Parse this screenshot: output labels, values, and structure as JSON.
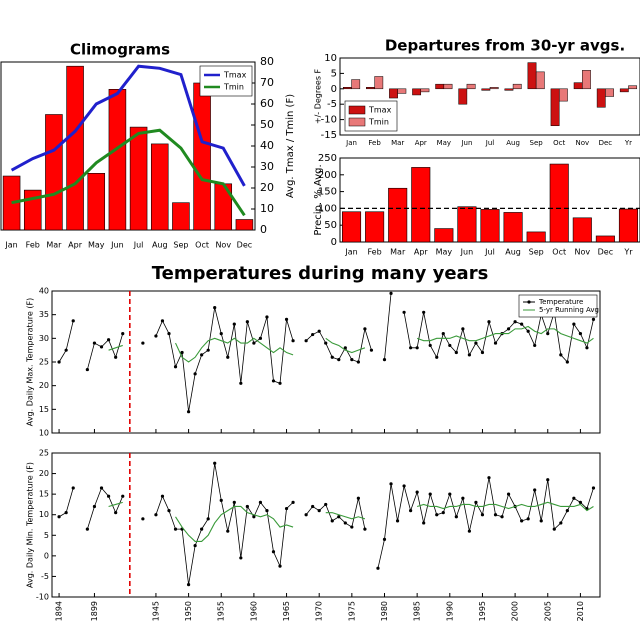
{
  "chart_data": [
    {
      "type": "bar",
      "title": "Climograms",
      "categories": [
        "Jan",
        "Feb",
        "Mar",
        "Apr",
        "May",
        "Jun",
        "Jul",
        "Aug",
        "Sep",
        "Oct",
        "Nov",
        "Dec"
      ],
      "values": [
        25.7,
        19,
        55,
        78,
        27,
        67,
        49,
        41,
        13,
        70,
        22,
        5
      ],
      "color": "#ff0000",
      "ylim": [
        0,
        80
      ],
      "y2lim": [
        0,
        80
      ],
      "y2ticks": [
        0,
        10,
        20,
        30,
        40,
        50,
        60,
        70,
        80
      ],
      "y2label": "Avg. Tmax / Tmin (F)",
      "legend": "upper right",
      "series": [
        {
          "name": "Tmax",
          "color": "#2020cc",
          "axis": "y2",
          "values": [
            28.5,
            34,
            38,
            47,
            60,
            65,
            78,
            77,
            74,
            42,
            39,
            21
          ]
        },
        {
          "name": "Tmin",
          "color": "#208a20",
          "axis": "y2",
          "values": [
            13,
            15,
            17,
            22,
            32,
            39,
            46,
            47.5,
            39,
            24,
            22,
            7
          ]
        }
      ]
    },
    {
      "type": "bar",
      "title": "Departures from 30-yr avgs.",
      "categories": [
        "Jan",
        "Feb",
        "Mar",
        "Apr",
        "May",
        "Jun",
        "Jul",
        "Aug",
        "Sep",
        "Oct",
        "Nov",
        "Dec",
        "Yr"
      ],
      "ylim": [
        -15,
        10
      ],
      "yticks": [
        -15,
        -10,
        -5,
        0,
        5,
        10
      ],
      "ylabel": "+/- Degrees F",
      "legend": "lower left",
      "series": [
        {
          "name": "Tmax",
          "color": "#cc1111",
          "values": [
            0.5,
            0.5,
            -3,
            -2,
            1.5,
            -5,
            -0.5,
            -0.5,
            8.5,
            -12,
            2,
            -6,
            -1
          ]
        },
        {
          "name": "Tmin",
          "color": "#e87878",
          "values": [
            3,
            4,
            -1.5,
            -1,
            1.5,
            1.5,
            0.5,
            1.5,
            5.5,
            -4,
            6,
            -2.5,
            1
          ]
        }
      ]
    },
    {
      "type": "bar",
      "categories": [
        "Jan",
        "Feb",
        "Mar",
        "Apr",
        "May",
        "Jun",
        "Jul",
        "Aug",
        "Sep",
        "Oct",
        "Nov",
        "Dec",
        "Yr"
      ],
      "values": [
        90,
        90,
        160,
        222,
        40,
        105,
        97,
        88,
        30,
        232,
        72,
        18,
        98
      ],
      "color": "#ff0000",
      "ylim": [
        0,
        250
      ],
      "yticks": [
        0,
        50,
        100,
        150,
        200,
        250
      ],
      "ylabel": "Precip. % Avg.",
      "hline": 100
    },
    {
      "type": "line",
      "title": "Temperatures during many years",
      "xlim": [
        1893,
        2013
      ],
      "xbreak": [
        1904,
        1941
      ],
      "ylim": [
        10,
        40
      ],
      "yticks": [
        10,
        15,
        20,
        25,
        30,
        35,
        40
      ],
      "ylabel": "Avg. Daily Max. Temperature (F)",
      "legend": "upper right",
      "series": [
        {
          "name": "Temperature",
          "color": "#000000",
          "marker": true,
          "x": [
            1894,
            1895,
            1896,
            1897,
            1898,
            1899,
            1900,
            1901,
            1902,
            1903,
            1904,
            1943,
            1944,
            1945,
            1946,
            1947,
            1948,
            1949,
            1950,
            1951,
            1952,
            1953,
            1954,
            1955,
            1956,
            1957,
            1958,
            1959,
            1960,
            1961,
            1962,
            1963,
            1964,
            1965,
            1966,
            1967,
            1968,
            1969,
            1970,
            1971,
            1972,
            1973,
            1974,
            1975,
            1976,
            1977,
            1978,
            1979,
            1980,
            1981,
            1982,
            1983,
            1984,
            1985,
            1986,
            1987,
            1988,
            1989,
            1990,
            1991,
            1992,
            1993,
            1994,
            1995,
            1996,
            1997,
            1998,
            1999,
            2000,
            2001,
            2002,
            2003,
            2004,
            2005,
            2006,
            2007,
            2008,
            2009,
            2010,
            2011,
            2012
          ],
          "values": [
            25,
            27.5,
            33.7,
            null,
            23.4,
            29,
            28.2,
            29.7,
            26,
            31,
            null,
            29,
            null,
            30.5,
            33.7,
            31,
            24,
            27,
            14.5,
            22.5,
            26.5,
            27.5,
            36.5,
            31,
            26,
            33,
            20.5,
            33.5,
            29,
            30,
            34.5,
            21,
            20.5,
            34,
            29.5,
            null,
            29.5,
            30.8,
            31.5,
            29,
            26,
            25.5,
            28,
            25.5,
            25,
            32,
            27.5,
            null,
            25.5,
            39.5,
            null,
            35.5,
            28,
            28,
            35.5,
            28.5,
            26,
            31,
            28.5,
            27,
            32,
            26.5,
            29,
            27,
            33.5,
            29,
            31,
            32,
            33.5,
            33,
            31.5,
            28.5,
            35,
            31,
            35.5,
            26.5,
            25,
            33,
            31,
            28,
            34
          ]
        },
        {
          "name": "5-yr Running Avg",
          "color": "#3a9a3a",
          "x": [
            1901,
            1902,
            1903,
            1904,
            1948,
            1949,
            1950,
            1951,
            1952,
            1953,
            1954,
            1955,
            1956,
            1957,
            1958,
            1959,
            1960,
            1961,
            1962,
            1963,
            1964,
            1965,
            1966,
            1967,
            1971,
            1972,
            1973,
            1974,
            1975,
            1976,
            1977,
            1978,
            1985,
            1986,
            1987,
            1988,
            1989,
            1990,
            1991,
            1992,
            1993,
            1994,
            1995,
            1996,
            1997,
            1998,
            1999,
            2000,
            2001,
            2002,
            2003,
            2004,
            2005,
            2006,
            2007,
            2008,
            2009,
            2010,
            2011,
            2012
          ],
          "values": [
            27.5,
            28,
            28.5,
            null,
            29,
            26,
            25,
            26,
            28,
            29.5,
            30,
            29.5,
            29,
            30,
            29,
            29,
            30,
            29,
            28,
            27,
            28,
            27,
            26.5,
            null,
            30,
            29,
            28.5,
            27.5,
            27,
            27.5,
            28,
            null,
            30,
            29.5,
            29.5,
            30,
            30,
            30,
            30.5,
            30,
            29.5,
            29.5,
            30,
            30.5,
            31,
            31,
            31,
            32,
            32,
            32.5,
            31.5,
            31,
            32,
            32,
            31,
            30.5,
            30,
            29.5,
            29,
            30
          ]
        }
      ]
    },
    {
      "type": "line",
      "xlim": [
        1893,
        2013
      ],
      "xbreak": [
        1904,
        1941
      ],
      "ylim": [
        -10,
        25
      ],
      "yticks": [
        -10,
        -5,
        0,
        5,
        10,
        15,
        20,
        25
      ],
      "xticks": [
        1894,
        1899,
        1945,
        1950,
        1955,
        1960,
        1965,
        1970,
        1975,
        1980,
        1985,
        1990,
        1995,
        2000,
        2005,
        2010
      ],
      "ylabel": "Avg. Daily Min. Temperature (F)",
      "series": [
        {
          "color": "#000000",
          "marker": true,
          "x": [
            1894,
            1895,
            1896,
            1897,
            1898,
            1899,
            1900,
            1901,
            1902,
            1903,
            1904,
            1943,
            1944,
            1945,
            1946,
            1947,
            1948,
            1949,
            1950,
            1951,
            1952,
            1953,
            1954,
            1955,
            1956,
            1957,
            1958,
            1959,
            1960,
            1961,
            1962,
            1963,
            1964,
            1965,
            1966,
            1967,
            1968,
            1969,
            1970,
            1971,
            1972,
            1973,
            1974,
            1975,
            1976,
            1977,
            1978,
            1979,
            1980,
            1981,
            1982,
            1983,
            1984,
            1985,
            1986,
            1987,
            1988,
            1989,
            1990,
            1991,
            1992,
            1993,
            1994,
            1995,
            1996,
            1997,
            1998,
            1999,
            2000,
            2001,
            2002,
            2003,
            2004,
            2005,
            2006,
            2007,
            2008,
            2009,
            2010,
            2011,
            2012
          ],
          "values": [
            9.5,
            10.5,
            16.5,
            null,
            6.5,
            12,
            16.5,
            14.5,
            10.5,
            14.5,
            null,
            9,
            null,
            10,
            14.5,
            11,
            6.5,
            6.5,
            -7,
            2.5,
            6.5,
            9,
            22.5,
            13.5,
            6,
            13,
            -0.5,
            12,
            9.5,
            13,
            11,
            1,
            -2.5,
            11.5,
            13,
            null,
            10,
            12,
            11,
            12.5,
            8.5,
            9.5,
            8,
            7,
            14,
            6.5,
            null,
            -3,
            4,
            17.5,
            8.5,
            17,
            11,
            15.5,
            8,
            15,
            10,
            10.5,
            15,
            9.5,
            14,
            6,
            13,
            10,
            19,
            10,
            9.5,
            15,
            12,
            8.5,
            9,
            16,
            8.5,
            18.5,
            6.5,
            8,
            11,
            14,
            13,
            11.5,
            16.5
          ]
        },
        {
          "color": "#3a9a3a",
          "x": [
            1901,
            1902,
            1903,
            1904,
            1948,
            1949,
            1950,
            1951,
            1952,
            1953,
            1954,
            1955,
            1956,
            1957,
            1958,
            1959,
            1960,
            1961,
            1962,
            1963,
            1964,
            1965,
            1966,
            1967,
            1971,
            1972,
            1973,
            1974,
            1975,
            1976,
            1977,
            1978,
            1985,
            1986,
            1987,
            1988,
            1989,
            1990,
            1991,
            1992,
            1993,
            1994,
            1995,
            1996,
            1997,
            1998,
            1999,
            2000,
            2001,
            2002,
            2003,
            2004,
            2005,
            2006,
            2007,
            2008,
            2009,
            2010,
            2011,
            2012
          ],
          "values": [
            12,
            12.5,
            13,
            null,
            9.5,
            7,
            5,
            3.5,
            3.5,
            5,
            8,
            10,
            11,
            12,
            12,
            10.5,
            10,
            9.5,
            10,
            9,
            7,
            7.5,
            7,
            null,
            10.5,
            10.5,
            10,
            9.5,
            9,
            9.5,
            9,
            null,
            12,
            12.5,
            12,
            12,
            11.5,
            12,
            12,
            12.5,
            12.5,
            12,
            12,
            12.5,
            12.5,
            12,
            11.5,
            12,
            12.5,
            12,
            12,
            12.5,
            13,
            12.5,
            12,
            12,
            12,
            12.5,
            11,
            12
          ]
        }
      ]
    }
  ]
}
